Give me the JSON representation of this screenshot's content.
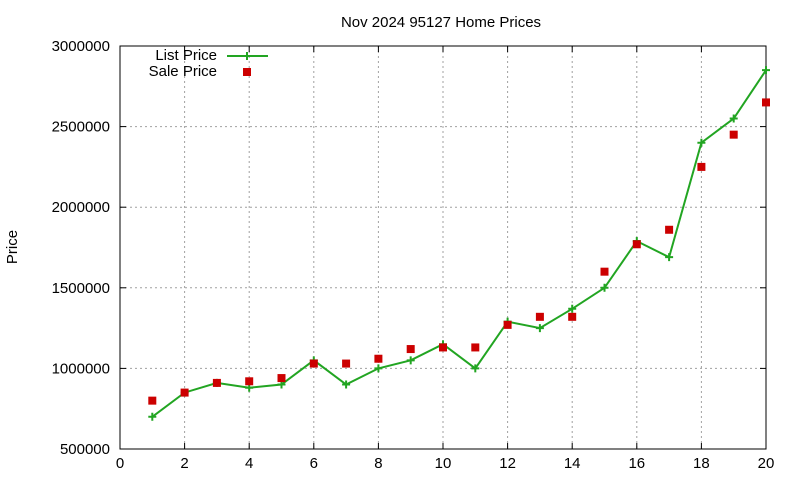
{
  "chart_data": {
    "type": "line",
    "title": "Nov 2024 95127 Home Prices",
    "xlabel": "",
    "ylabel": "Price",
    "xlim": [
      0,
      20
    ],
    "ylim": [
      500000,
      3000000
    ],
    "x_ticks": [
      0,
      2,
      4,
      6,
      8,
      10,
      12,
      14,
      16,
      18,
      20
    ],
    "y_ticks": [
      500000,
      1000000,
      1500000,
      2000000,
      2500000,
      3000000
    ],
    "grid": true,
    "legend_position": "top-left",
    "series": [
      {
        "name": "List Price",
        "style": "line-with-plus-markers",
        "color": "#22a522",
        "x": [
          1,
          2,
          3,
          4,
          5,
          6,
          7,
          8,
          9,
          10,
          11,
          12,
          13,
          14,
          15,
          16,
          17,
          18,
          19,
          20
        ],
        "values": [
          700000,
          850000,
          910000,
          880000,
          900000,
          1050000,
          900000,
          1000000,
          1050000,
          1150000,
          1000000,
          1290000,
          1250000,
          1370000,
          1500000,
          1790000,
          1690000,
          2400000,
          2550000,
          2850000
        ]
      },
      {
        "name": "Sale Price",
        "style": "square-markers",
        "color": "#cc0000",
        "x": [
          1,
          2,
          3,
          4,
          5,
          6,
          7,
          8,
          9,
          10,
          11,
          12,
          13,
          14,
          15,
          16,
          17,
          18,
          19,
          20
        ],
        "values": [
          800000,
          850000,
          910000,
          920000,
          940000,
          1030000,
          1030000,
          1060000,
          1120000,
          1130000,
          1130000,
          1270000,
          1320000,
          1320000,
          1600000,
          1770000,
          1860000,
          2250000,
          2450000,
          2650000
        ]
      }
    ]
  }
}
